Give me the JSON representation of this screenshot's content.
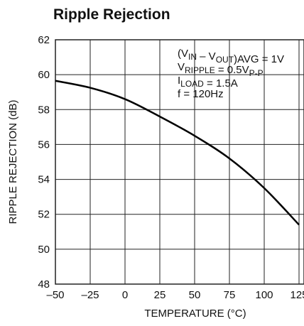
{
  "chart_data": {
    "type": "line",
    "title": "Ripple Rejection",
    "x_label": "TEMPERATURE (°C)",
    "y_label": "RIPPLE REJECTION (dB)",
    "x": [
      -50,
      -25,
      0,
      25,
      50,
      75,
      100,
      125
    ],
    "series": [
      {
        "name": null,
        "color": "#000000",
        "values": [
          59.65,
          59.25,
          58.6,
          57.6,
          56.5,
          55.2,
          53.5,
          51.4
        ]
      }
    ],
    "xlim": [
      -50,
      125
    ],
    "xticks": [
      {
        "value": -50,
        "label": "–50"
      },
      {
        "value": -25,
        "label": "–25"
      },
      0,
      25,
      50,
      75,
      100,
      125
    ],
    "ylim": [
      48,
      62
    ],
    "yticks": [
      48,
      50,
      52,
      54,
      56,
      58,
      60,
      62
    ],
    "grid": true,
    "annotations": [
      [
        {
          "text": "(V",
          "sub": false
        },
        {
          "text": "IN",
          "sub": true
        },
        {
          "text": " – V",
          "sub": false
        },
        {
          "text": "OUT",
          "sub": true
        },
        {
          "text": ")AVG = 1V",
          "sub": false
        }
      ],
      [
        {
          "text": "V",
          "sub": false
        },
        {
          "text": "RIPPLE",
          "sub": true
        },
        {
          "text": " = 0.5V",
          "sub": false
        },
        {
          "text": "P-P",
          "sub": true
        }
      ],
      [
        {
          "text": "I",
          "sub": false
        },
        {
          "text": "LOAD",
          "sub": true
        },
        {
          "text": " = 1.5A",
          "sub": false
        }
      ],
      [
        {
          "text": "f = 120Hz",
          "sub": false
        }
      ]
    ]
  }
}
